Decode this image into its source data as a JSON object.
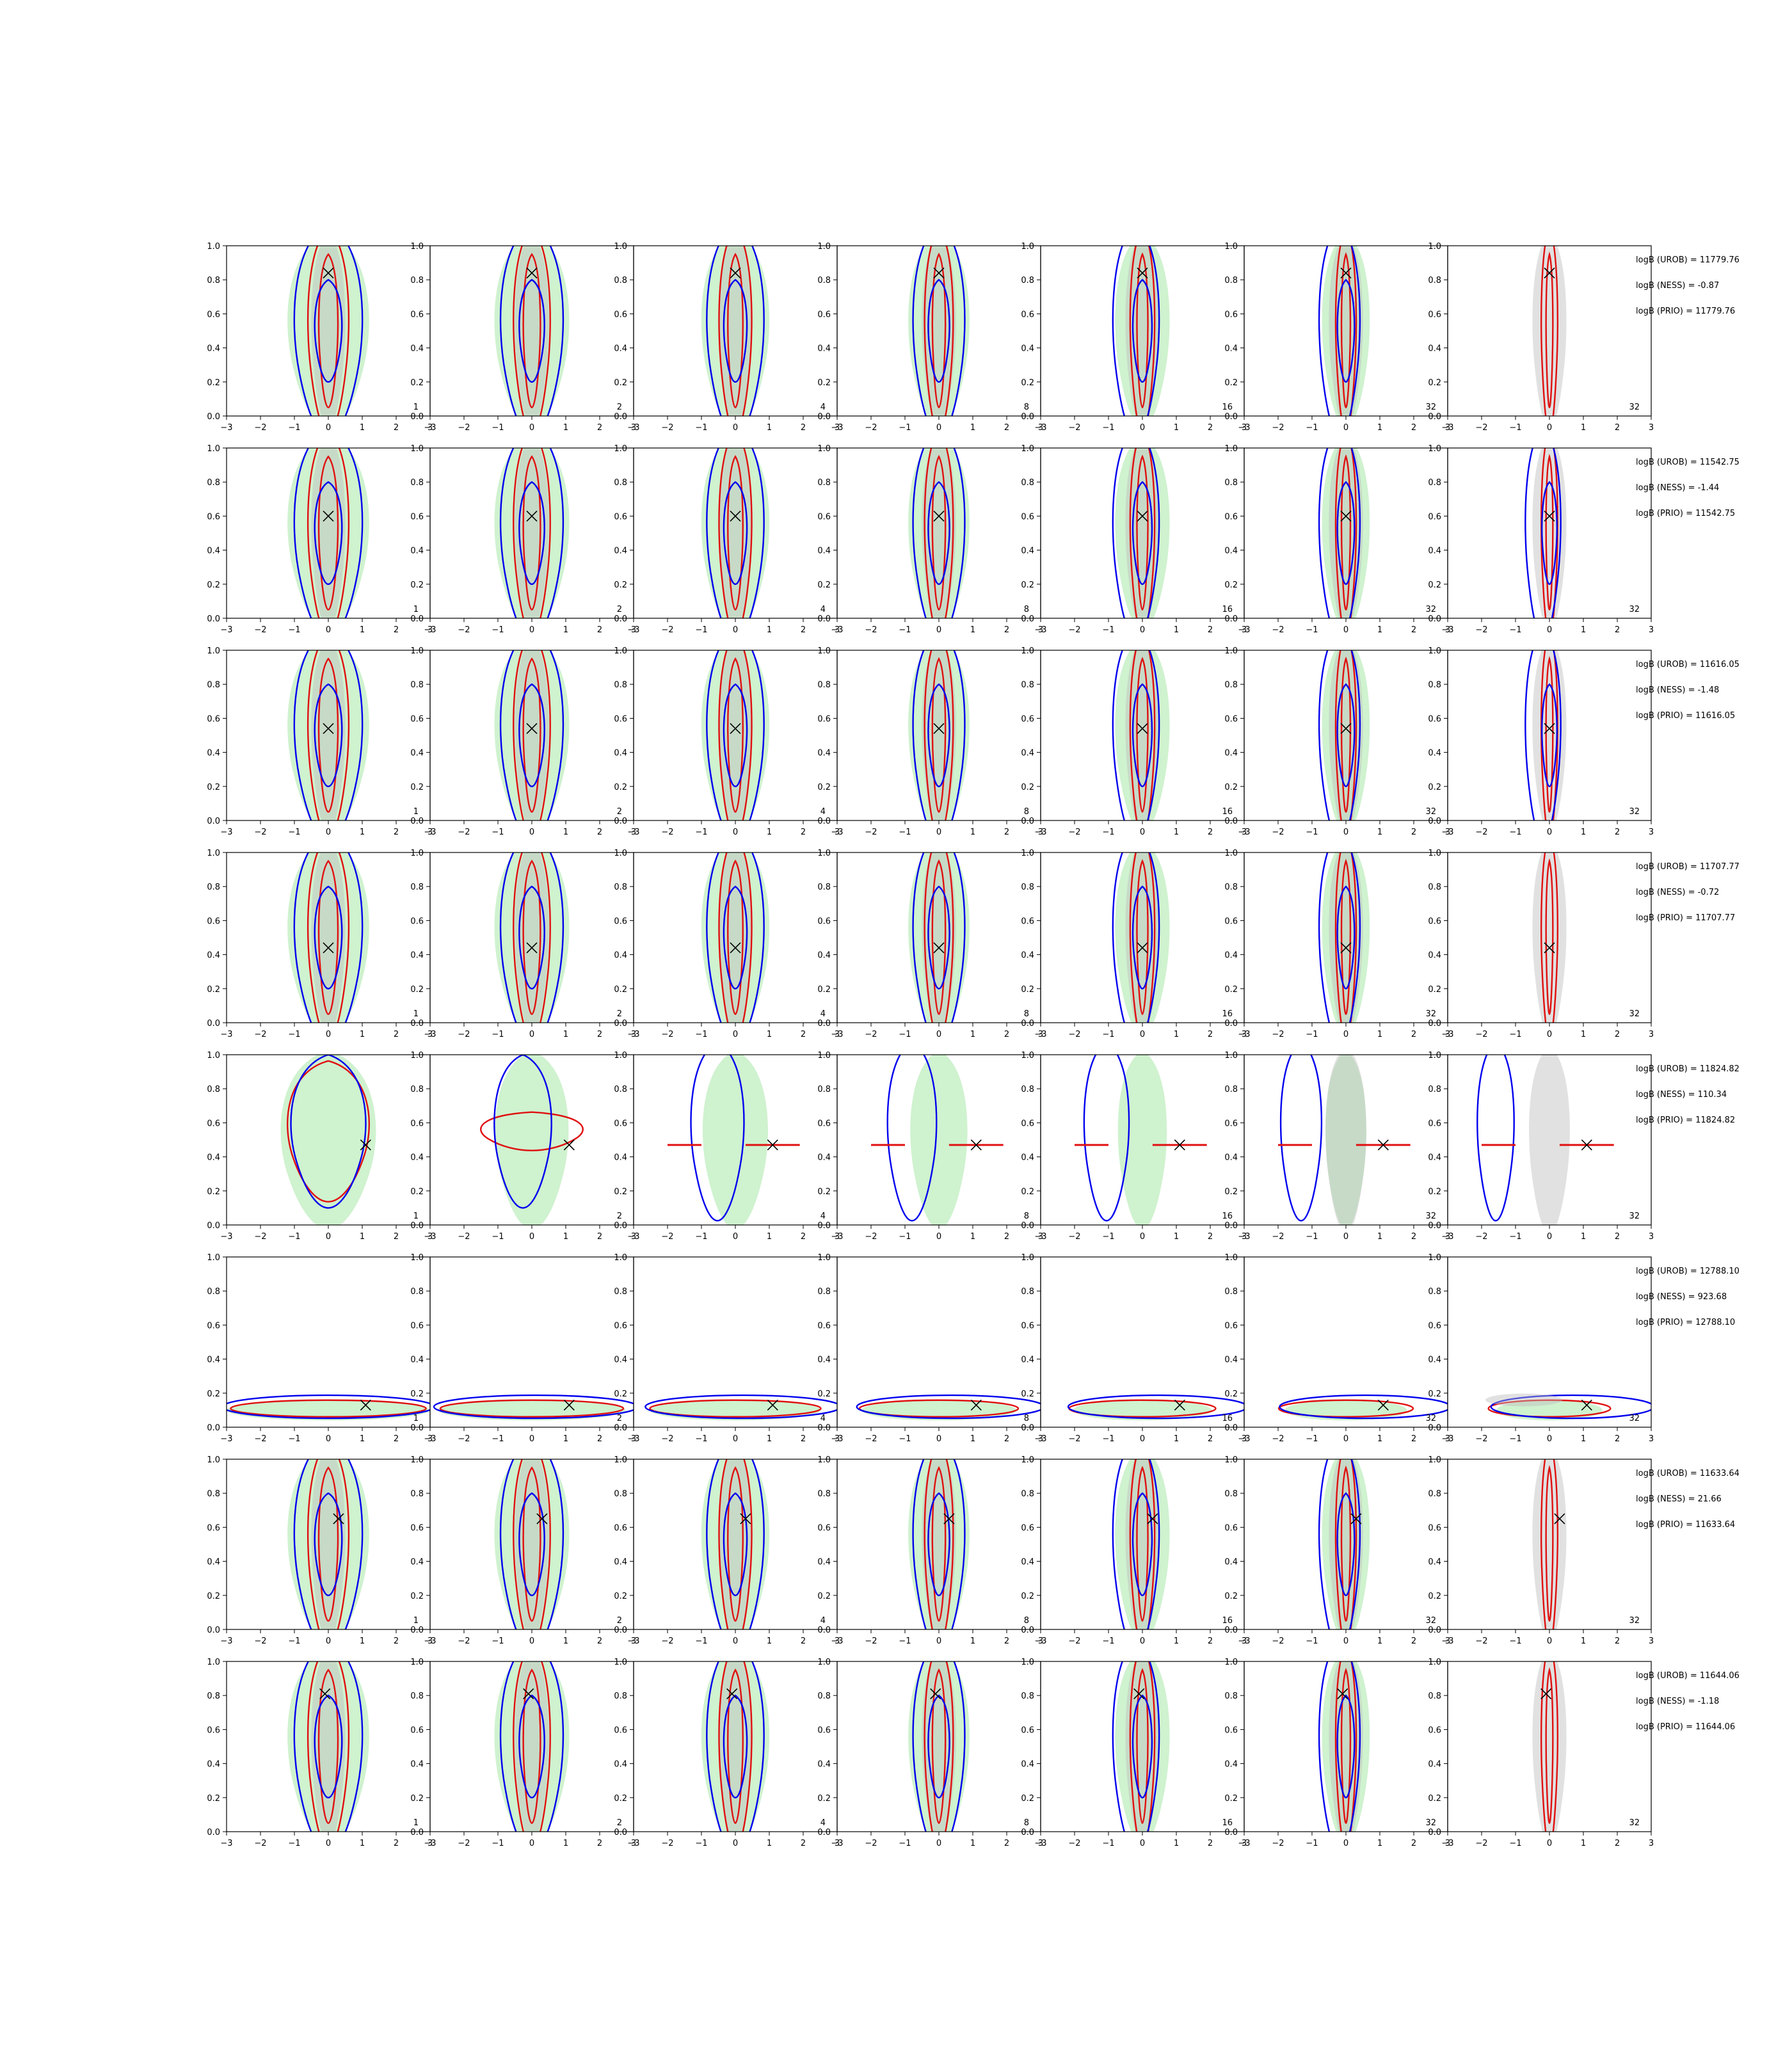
{
  "colors": {
    "blue_contour": "#0000ee",
    "red_contour": "#e01010",
    "green_fill": "#bfeebf",
    "gray_fill": "#bdbdbd",
    "marker": "#000000"
  },
  "chart_data": {
    "type": "contour-grid",
    "xlim": [
      -3,
      3
    ],
    "ylim": [
      0.0,
      1.0
    ],
    "xticks": [
      "−3",
      "−2",
      "−1",
      "0",
      "1",
      "2",
      "3"
    ],
    "yticks": [
      "0.0",
      "0.2",
      "0.4",
      "0.6",
      "0.8",
      "1.0"
    ],
    "column_labels": [
      "1",
      "2",
      "4",
      "8",
      "16",
      "32",
      "32"
    ],
    "rows": [
      {
        "true_point": [
          0.0,
          0.84
        ],
        "logb": [
          "logB (UROB) = 11779.76",
          "logB (NESS) = -0.87",
          "logB (PRIO) = 11779.76"
        ]
      },
      {
        "true_point": [
          0.0,
          0.6
        ],
        "logb": [
          "logB (UROB) = 11542.75",
          "logB (NESS) = -1.44",
          "logB (PRIO) = 11542.75"
        ]
      },
      {
        "true_point": [
          0.0,
          0.54
        ],
        "logb": [
          "logB (UROB) = 11616.05",
          "logB (NESS) = -1.48",
          "logB (PRIO) = 11616.05"
        ]
      },
      {
        "true_point": [
          0.0,
          0.44
        ],
        "logb": [
          "logB (UROB) = 11707.77",
          "logB (NESS) = -0.72",
          "logB (PRIO) = 11707.77"
        ]
      },
      {
        "true_point": [
          1.1,
          0.47
        ],
        "logb": [
          "logB (UROB) = 11824.82",
          "logB (NESS) = 110.34",
          "logB (PRIO) = 11824.82"
        ]
      },
      {
        "true_point": [
          1.1,
          0.13
        ],
        "logb": [
          "logB (UROB) = 12788.10",
          "logB (NESS) = 923.68",
          "logB (PRIO) = 12788.10"
        ]
      },
      {
        "true_point": [
          0.3,
          0.65
        ],
        "logb": [
          "logB (UROB) = 11633.64",
          "logB (NESS) = 21.66",
          "logB (PRIO) = 11633.64"
        ]
      },
      {
        "true_point": [
          -0.1,
          0.81
        ],
        "logb": [
          "logB (UROB) = 11644.06",
          "logB (NESS) = -1.18",
          "logB (PRIO) = 11644.06"
        ]
      }
    ]
  }
}
